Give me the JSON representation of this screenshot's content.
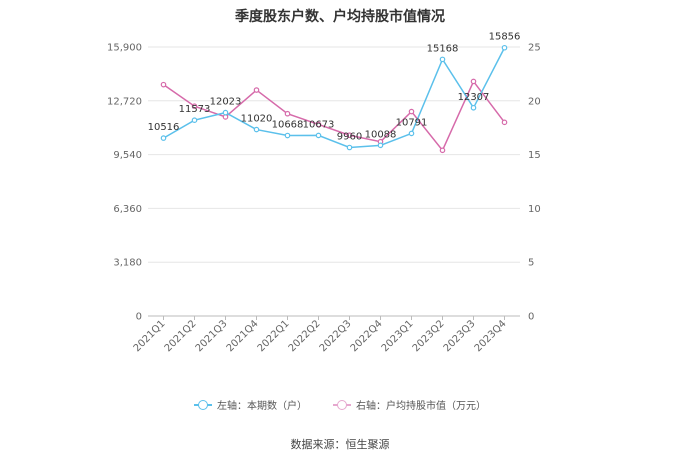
{
  "chart_data": {
    "type": "line",
    "title": "季度股东户数、户均持股市值情况",
    "categories": [
      "2021Q1",
      "2021Q2",
      "2021Q3",
      "2021Q4",
      "2022Q1",
      "2022Q2",
      "2022Q3",
      "2022Q4",
      "2023Q1",
      "2023Q2",
      "2023Q3",
      "2023Q4"
    ],
    "left_axis": {
      "ticks": [
        "0",
        "3,180",
        "6,360",
        "9,540",
        "12,720",
        "15,900"
      ],
      "ylim": [
        0,
        15900
      ]
    },
    "right_axis": {
      "ticks": [
        "0",
        "5",
        "10",
        "15",
        "20",
        "25"
      ],
      "ylim": [
        0,
        25
      ]
    },
    "series": [
      {
        "name": "左轴：本期数（户）",
        "axis": "left",
        "color": "#5bc0eb",
        "values": [
          10516,
          11573,
          12023,
          11020,
          10668,
          10673,
          9960,
          10088,
          10791,
          15168,
          12307,
          15856
        ],
        "labels": [
          "10516",
          "11573",
          "12023",
          "11020",
          "10668",
          "10673",
          "9960",
          "10088",
          "10791",
          "15168",
          "12307",
          "15856"
        ]
      },
      {
        "name": "右轴：户均持股市值（万元）",
        "axis": "right",
        "color": "#d66aaa",
        "values": [
          21.5,
          19.5,
          18.5,
          21.0,
          18.8,
          17.8,
          16.8,
          16.2,
          19.0,
          15.4,
          21.8,
          18.0
        ]
      }
    ],
    "grid": true,
    "legend": "bottom"
  },
  "source_text": "数据来源：恒生聚源"
}
